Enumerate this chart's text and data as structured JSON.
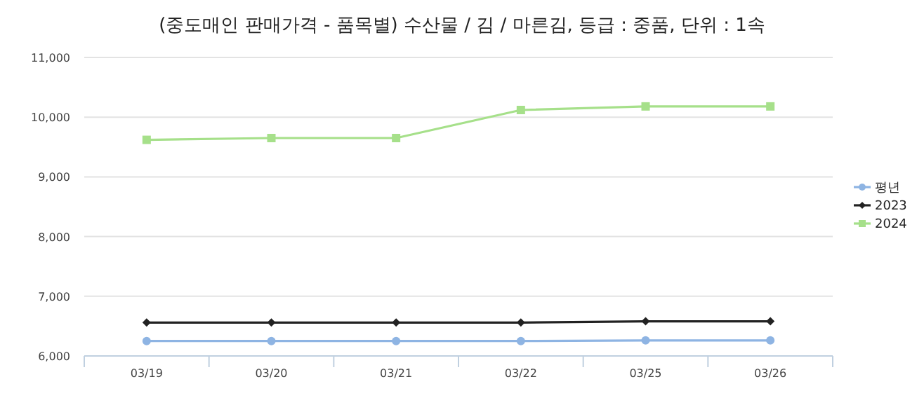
{
  "chart_data": {
    "type": "line",
    "title": "(중도매인 판매가격 - 품목별) 수산물 / 김 / 마른김, 등급 : 중품, 단위 : 1속",
    "categories": [
      "03/19",
      "03/20",
      "03/21",
      "03/22",
      "03/25",
      "03/26"
    ],
    "series": [
      {
        "name": "평년",
        "color": "#8eb4e3",
        "marker": "circle",
        "values": [
          6250,
          6250,
          6250,
          6250,
          6260,
          6260
        ]
      },
      {
        "name": "2023",
        "color": "#222222",
        "marker": "diamond",
        "values": [
          6560,
          6560,
          6560,
          6560,
          6580,
          6580
        ]
      },
      {
        "name": "2024",
        "color": "#a6e08a",
        "marker": "square",
        "values": [
          9620,
          9650,
          9650,
          10120,
          10180,
          10180
        ]
      }
    ],
    "ylim": [
      6000,
      11000
    ],
    "yticks": [
      {
        "value": 6000,
        "label": "6,000"
      },
      {
        "value": 7000,
        "label": "7,000"
      },
      {
        "value": 8000,
        "label": "8,000"
      },
      {
        "value": 9000,
        "label": "9,000"
      },
      {
        "value": 10000,
        "label": "10,000"
      },
      {
        "value": 11000,
        "label": "11,000"
      }
    ],
    "grid": "y",
    "legend": "right"
  }
}
